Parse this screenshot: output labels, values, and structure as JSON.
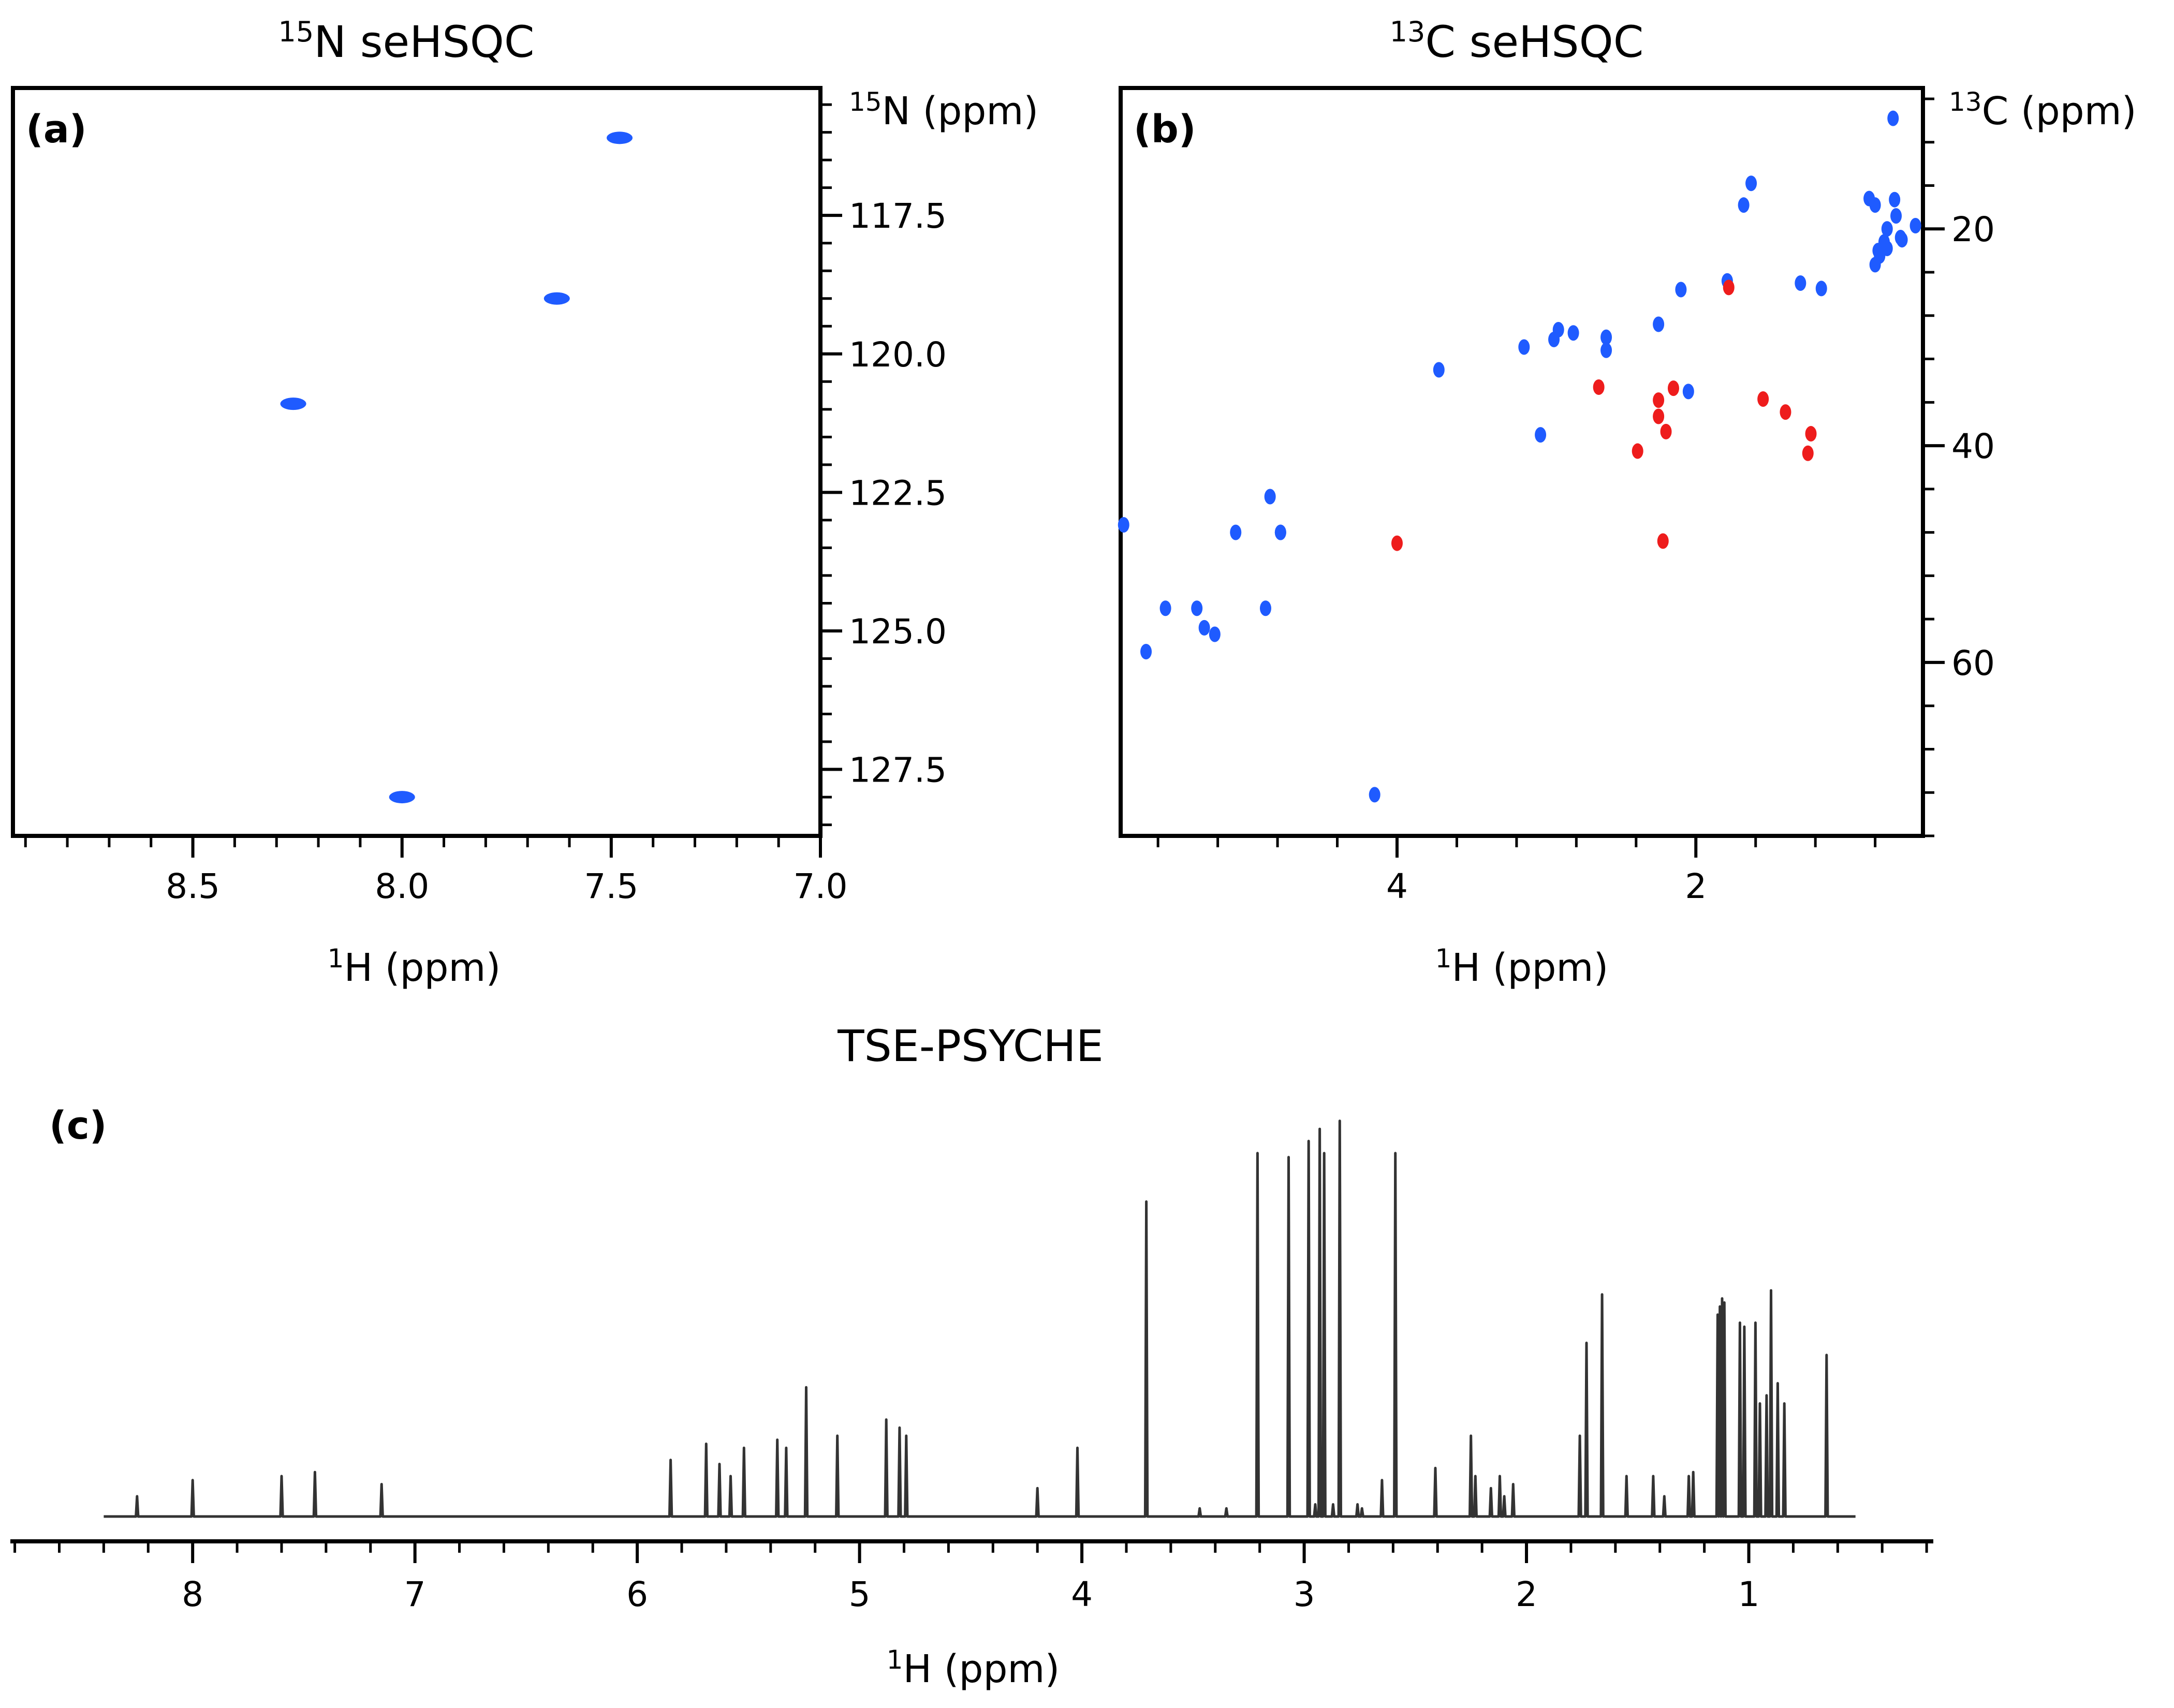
{
  "colors": {
    "cross_peak": "#1f5bff",
    "cross_peak_negative": "#ee1c1c",
    "spectrum_line": "#333333",
    "axes": "#000000"
  },
  "chart_data": [
    {
      "type": "scatter",
      "panel": "(a)",
      "title_isotope": "15",
      "title_text": "N seHSQC",
      "xlabel_isotope": "1",
      "xlabel_text": "H (ppm)",
      "ylabel_isotope": "15",
      "ylabel_text": "N (ppm)",
      "xlim": [
        8.93,
        7.0
      ],
      "ylim": [
        128.7,
        115.2
      ],
      "x_ticks": [
        8.5,
        8.0,
        7.5,
        7.0
      ],
      "x_tick_labels": [
        "8.5",
        "8.0",
        "7.5",
        "7.0"
      ],
      "y_ticks": [
        117.5,
        120.0,
        122.5,
        125.0,
        127.5
      ],
      "y_tick_labels": [
        "117.5",
        "120.0",
        "122.5",
        "125.0",
        "127.5"
      ],
      "series": [
        {
          "color": "#1f5bff",
          "x": [
            7.48,
            7.63,
            8.26,
            8.0
          ],
          "y": [
            116.1,
            119.0,
            120.9,
            128.0
          ]
        }
      ]
    },
    {
      "type": "scatter",
      "panel": "(b)",
      "title_isotope": "13",
      "title_text": "C seHSQC",
      "xlabel_isotope": "1",
      "xlabel_text": "H (ppm)",
      "ylabel_isotope": "13",
      "ylabel_text": "C (ppm)",
      "xlim": [
        5.85,
        0.48
      ],
      "ylim": [
        76.0,
        7.0
      ],
      "x_ticks": [
        4,
        2
      ],
      "x_tick_labels": [
        "4",
        "2"
      ],
      "y_ticks": [
        20,
        40,
        60
      ],
      "y_tick_labels": [
        "20",
        "40",
        "60"
      ],
      "series": [
        {
          "color": "#1f5bff",
          "x": [
            0.68,
            1.63,
            1.68,
            0.67,
            0.53,
            0.62,
            0.72,
            0.77,
            0.8,
            0.84,
            0.66,
            0.63,
            0.72,
            0.74,
            0.78,
            0.8,
            1.79,
            1.3,
            1.16,
            2.1,
            2.25,
            2.92,
            2.95,
            2.82,
            3.15,
            2.6,
            2.6,
            3.72,
            2.05,
            3.04,
            4.85,
            4.78,
            5.08,
            4.78,
            5.83,
            5.55,
            5.34,
            4.88,
            5.29,
            5.22,
            5.68,
            4.15
          ],
          "y": [
            9.8,
            15.8,
            17.8,
            17.3,
            19.7,
            21.0,
            21.8,
            22.5,
            17.8,
            17.2,
            18.8,
            20.8,
            20.0,
            21.2,
            22.0,
            23.3,
            24.8,
            25.0,
            25.5,
            25.6,
            28.8,
            29.3,
            30.2,
            29.6,
            30.9,
            30.0,
            31.2,
            33.0,
            35.0,
            39.0,
            44.7,
            48.0,
            48.0,
            48.0,
            47.3,
            55.0,
            55.0,
            55.0,
            56.8,
            57.4,
            59.0,
            72.2
          ]
        },
        {
          "color": "#ee1c1c",
          "x": [
            1.78,
            2.65,
            2.15,
            2.25,
            2.25,
            1.55,
            1.4,
            2.2,
            1.23,
            2.39,
            1.25,
            4.0,
            2.22
          ],
          "y": [
            25.4,
            34.6,
            34.7,
            35.8,
            37.3,
            35.7,
            36.9,
            38.7,
            38.9,
            40.5,
            40.7,
            49.0,
            48.8
          ]
        }
      ]
    },
    {
      "type": "line",
      "panel": "(c)",
      "title": "TSE-PSYCHE",
      "xlabel_isotope": "1",
      "xlabel_text": "H (ppm)",
      "xlim": [
        8.82,
        0.17
      ],
      "x_ticks": [
        8,
        7,
        6,
        5,
        4,
        3,
        2,
        1
      ],
      "x_tick_labels": [
        "8",
        "7",
        "6",
        "5",
        "4",
        "3",
        "2",
        "1"
      ],
      "baseline_range": [
        8.4,
        0.52
      ],
      "peaks": {
        "ppm": [
          8.25,
          8.0,
          7.6,
          7.45,
          7.15,
          5.85,
          5.69,
          5.63,
          5.58,
          5.52,
          5.37,
          5.33,
          5.24,
          5.1,
          4.88,
          4.82,
          4.79,
          4.2,
          4.02,
          3.71,
          3.47,
          3.35,
          3.21,
          3.07,
          2.98,
          2.95,
          2.93,
          2.91,
          2.87,
          2.84,
          2.76,
          2.74,
          2.65,
          2.59,
          2.41,
          2.25,
          2.23,
          2.16,
          2.12,
          2.1,
          2.06,
          1.76,
          1.73,
          1.66,
          1.55,
          1.43,
          1.38,
          1.27,
          1.25,
          1.14,
          1.13,
          1.12,
          1.11,
          1.04,
          1.02,
          0.97,
          0.95,
          0.92,
          0.9,
          0.87,
          0.84,
          0.65
        ],
        "height": [
          0.05,
          0.09,
          0.1,
          0.11,
          0.08,
          0.14,
          0.18,
          0.13,
          0.1,
          0.17,
          0.19,
          0.17,
          0.32,
          0.2,
          0.24,
          0.22,
          0.2,
          0.07,
          0.17,
          0.78,
          0.02,
          0.02,
          0.9,
          0.89,
          0.93,
          0.03,
          0.96,
          0.9,
          0.03,
          0.98,
          0.03,
          0.02,
          0.09,
          0.9,
          0.12,
          0.2,
          0.1,
          0.07,
          0.1,
          0.05,
          0.08,
          0.2,
          0.43,
          0.55,
          0.1,
          0.1,
          0.05,
          0.1,
          0.11,
          0.5,
          0.52,
          0.54,
          0.53,
          0.48,
          0.47,
          0.48,
          0.28,
          0.3,
          0.56,
          0.33,
          0.28,
          0.4
        ]
      }
    }
  ]
}
